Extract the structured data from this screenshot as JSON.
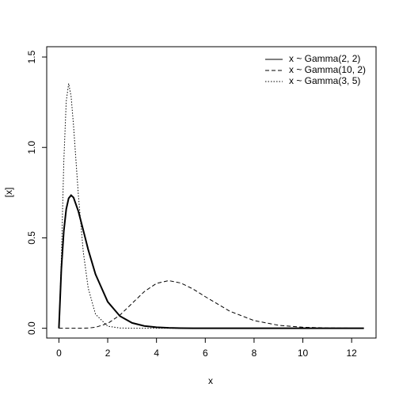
{
  "chart_data": {
    "type": "line",
    "x_label": "x",
    "y_label": "[x]",
    "x": [
      0,
      0.1,
      0.2,
      0.3,
      0.4,
      0.5,
      0.6,
      0.8,
      1.0,
      1.2,
      1.5,
      2,
      2.5,
      3,
      3.5,
      4,
      4.5,
      5,
      5.5,
      6,
      7,
      8,
      9,
      10,
      11,
      12.5
    ],
    "series": [
      {
        "name": "x ~ Gamma(2, 2)",
        "color": "#000000",
        "dash": "solid",
        "lwd": 2,
        "values": [
          0,
          0.3275,
          0.5363,
          0.6586,
          0.7189,
          0.7358,
          0.7229,
          0.646,
          0.5413,
          0.4355,
          0.2987,
          0.1465,
          0.0674,
          0.0297,
          0.0128,
          0.0054,
          0.0022,
          0.0009,
          0.0004,
          0.0001,
          0,
          0,
          0,
          0,
          0,
          0
        ]
      },
      {
        "name": "x ~ Gamma(10, 2)",
        "color": "#000000",
        "dash": "dashed",
        "lwd": 1,
        "values": [
          0,
          0,
          0,
          0,
          0,
          0,
          0,
          0.0001,
          0.0004,
          0.0013,
          0.0054,
          0.0265,
          0.0725,
          0.1377,
          0.2028,
          0.2482,
          0.2635,
          0.2502,
          0.2171,
          0.1747,
          0.0947,
          0.0426,
          0.0166,
          0.0058,
          0.0019,
          0.0003
        ]
      },
      {
        "name": "x ~ Gamma(3, 5)",
        "color": "#000000",
        "dash": "dotted",
        "lwd": 1,
        "values": [
          0,
          0.3791,
          0.9197,
          1.2551,
          1.3534,
          1.2825,
          1.1202,
          0.7326,
          0.4211,
          0.2231,
          0.0778,
          0.0114,
          0.0015,
          0.0002,
          0,
          0,
          0,
          0,
          0,
          0,
          0,
          0,
          0,
          0,
          0,
          0
        ]
      }
    ],
    "xlim": [
      -0.5,
      13.0
    ],
    "xticks": [
      0,
      2,
      4,
      6,
      8,
      10,
      12
    ],
    "ylim": [
      -0.054,
      1.557
    ],
    "yticks": [
      {
        "value": 0,
        "label": "0.0"
      },
      {
        "value": 0.5,
        "label": "0.5"
      },
      {
        "value": 1,
        "label": "1.0"
      },
      {
        "value": 1.5,
        "label": "1.5"
      }
    ],
    "legend": "top-right"
  }
}
